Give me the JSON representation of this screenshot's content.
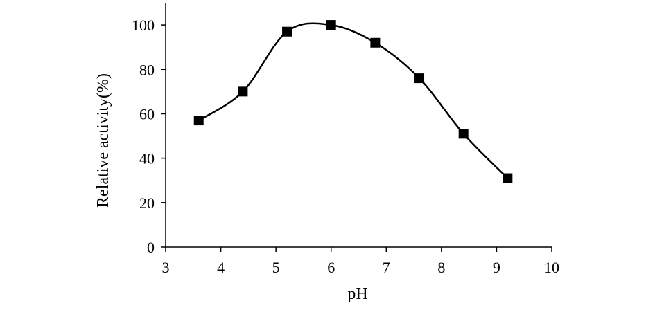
{
  "chart_data": {
    "type": "line",
    "title": "",
    "xlabel": "pH",
    "ylabel": "Relative activity(%)",
    "xlim": [
      3,
      10
    ],
    "ylim": [
      0,
      110
    ],
    "xticks": [
      3,
      4,
      5,
      6,
      7,
      8,
      9,
      10
    ],
    "yticks": [
      0,
      20,
      40,
      60,
      80,
      100
    ],
    "grid": false,
    "legend": "none",
    "marker": "square",
    "line_style": "smooth",
    "colors": {
      "line": "#000000",
      "marker": "#000000",
      "axis": "#000000"
    },
    "series": [
      {
        "x": [
          3.6,
          4.4,
          5.2,
          6.0,
          6.8,
          7.6,
          8.4,
          9.2
        ],
        "values": [
          57,
          70,
          97,
          100,
          92,
          76,
          51,
          31
        ]
      }
    ]
  }
}
